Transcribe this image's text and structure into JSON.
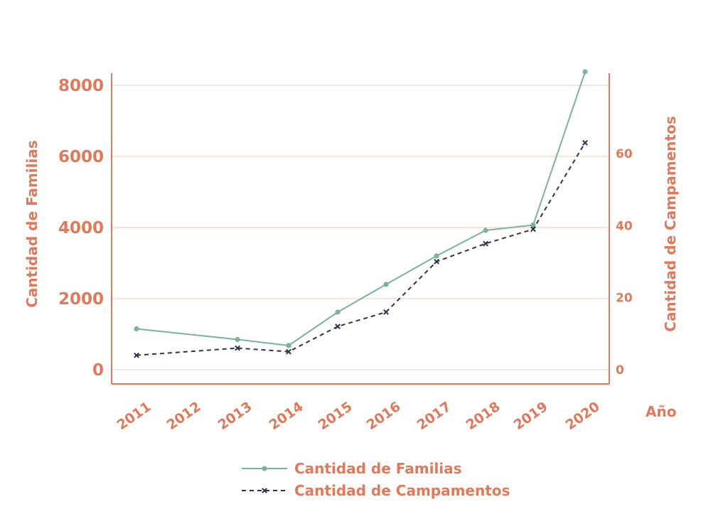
{
  "colors": {
    "axis": "#e0785a",
    "grid": "#f3c9b9",
    "familias": "#7ab397",
    "campamentos": "#2e3150"
  },
  "chart_data": {
    "type": "line",
    "x": [
      "2011",
      "2012",
      "2013",
      "2014",
      "2015",
      "2016",
      "2017",
      "2018",
      "2019",
      "2020"
    ],
    "xlabel": "Año",
    "y_left": {
      "label": "Cantidad de Familias",
      "ticks": [
        0,
        2000,
        4000,
        6000,
        8000
      ],
      "range": [
        -400,
        8300
      ]
    },
    "y_right": {
      "label": "Cantidad de Campamentos",
      "ticks": [
        0,
        20,
        40,
        60
      ],
      "range": [
        -4,
        83
      ]
    },
    "grid": true,
    "legend": "bottom",
    "series": [
      {
        "name": "Cantidad de Familias",
        "axis": "left",
        "marker": "circle",
        "style": "solid",
        "points": [
          {
            "x": "2011",
            "y": 1150
          },
          {
            "x": "2013",
            "y": 850
          },
          {
            "x": "2014",
            "y": 680
          },
          {
            "x": "2015",
            "y": 1620
          },
          {
            "x": "2016",
            "y": 2400
          },
          {
            "x": "2017",
            "y": 3200
          },
          {
            "x": "2018",
            "y": 3920
          },
          {
            "x": "2019",
            "y": 4070
          },
          {
            "x": "2020",
            "y": 8380
          }
        ]
      },
      {
        "name": "Cantidad de Campamentos",
        "axis": "right",
        "marker": "x",
        "style": "dashed",
        "points": [
          {
            "x": "2011",
            "y": 4
          },
          {
            "x": "2013",
            "y": 6
          },
          {
            "x": "2014",
            "y": 5
          },
          {
            "x": "2015",
            "y": 12
          },
          {
            "x": "2016",
            "y": 16
          },
          {
            "x": "2017",
            "y": 30
          },
          {
            "x": "2018",
            "y": 35
          },
          {
            "x": "2019",
            "y": 39
          },
          {
            "x": "2020",
            "y": 63
          }
        ]
      }
    ]
  }
}
